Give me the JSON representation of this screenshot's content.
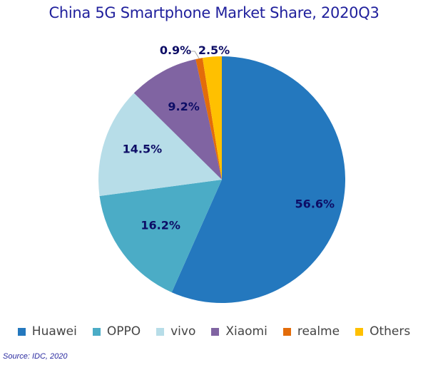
{
  "chart_data": {
    "type": "pie",
    "title": "China 5G Smartphone Market Share, 2020Q3",
    "categories": [
      "Huawei",
      "OPPO",
      "vivo",
      "Xiaomi",
      "realme",
      "Others"
    ],
    "values": [
      56.6,
      16.2,
      14.5,
      9.2,
      0.9,
      2.5
    ],
    "labels": [
      "56.6%",
      "16.2%",
      "14.5%",
      "9.2%",
      "0.9%",
      "2.5%"
    ],
    "colors": [
      "#2478be",
      "#4bacc6",
      "#b7dde8",
      "#8064a2",
      "#e36c0a",
      "#ffc000"
    ],
    "legend_position": "bottom",
    "source": "Source: IDC, 2020"
  }
}
